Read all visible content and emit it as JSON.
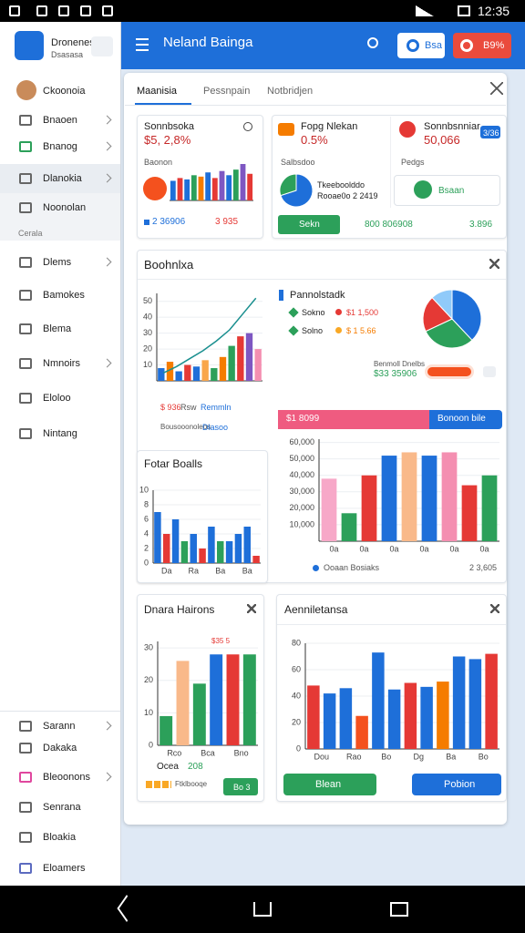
{
  "status_bar": {
    "time": "12:35"
  },
  "sidebar": {
    "app_name": "Dronenes",
    "app_sub": "Dsasasa",
    "user": "Ckoonoia",
    "items": [
      "Bnaoen",
      "Bnanog",
      "Dlanokia",
      "Noonolan"
    ],
    "section": "Cerala",
    "items2": [
      "Dlems",
      "Bamokes",
      "Blema",
      "Nmnoirs",
      "Eloloo",
      "Nintang"
    ],
    "items3": [
      "Sarann",
      "Dakaka",
      "Bleoonons",
      "Senrana",
      "Bloakia",
      "Eloamers"
    ]
  },
  "header": {
    "title": "Neland Bainga",
    "button1": "Bsa",
    "button2": "B9%"
  },
  "tabs": [
    "Maanisia",
    "Pessnpain",
    "Notbridjen"
  ],
  "summary": [
    {
      "title": "Sonnbsoka",
      "value": "$5, 2,8%",
      "label": "Baonon",
      "chart": {
        "values": [
          14,
          16,
          15,
          18,
          17,
          20,
          16,
          21,
          18,
          22,
          26,
          19
        ],
        "colors": [
          "#1e6fd9",
          "#e53935",
          "#1e6fd9",
          "#2ca05a",
          "#f57c00",
          "#1e6fd9",
          "#e53935",
          "#7e57c2",
          "#1e6fd9",
          "#2ca05a",
          "#7e57c2",
          "#e53935"
        ]
      },
      "foot1": "2 36906",
      "foot2": "3 935"
    },
    {
      "title": "Fopg Nlekan",
      "value": "0.5%",
      "label": "Salbsdoo",
      "pie": {
        "values": [
          70,
          30
        ],
        "colors": [
          "#1e6fd9",
          "#2ca05a"
        ]
      },
      "pie_label1": "Tkeeboolddo",
      "pie_label2": "Rooae0o 2 2419",
      "button": "Sekn",
      "foot1": "800 806908",
      "foot2": "3.896"
    },
    {
      "title": "Sonnbsnniar",
      "value": "50,066",
      "badge": "3/36",
      "label": "Pedgs",
      "item": "Bsaan"
    }
  ],
  "main": {
    "title": "Boohnlxa",
    "left_chart": {
      "ylim": [
        0,
        55
      ],
      "yticks": [
        10,
        20,
        30,
        40,
        50
      ],
      "bars": [
        {
          "value": 8,
          "color": "#1e6fd9"
        },
        {
          "value": 12,
          "color": "#f57c00"
        },
        {
          "value": 6,
          "color": "#1e6fd9"
        },
        {
          "value": 10,
          "color": "#e53935"
        },
        {
          "value": 9,
          "color": "#1e6fd9"
        },
        {
          "value": 13,
          "color": "#f9a64a"
        },
        {
          "value": 8,
          "color": "#2ca05a"
        },
        {
          "value": 15,
          "color": "#f57c00"
        },
        {
          "value": 22,
          "color": "#2ca05a"
        },
        {
          "value": 28,
          "color": "#e53935"
        },
        {
          "value": 30,
          "color": "#7e57c2"
        },
        {
          "value": 20,
          "color": "#f48fb1"
        }
      ],
      "line": {
        "color": "#1a8f8f",
        "values": [
          5,
          9,
          14,
          19,
          25,
          32,
          42,
          52
        ]
      }
    },
    "left_legend": [
      "$ 936",
      "Rsw",
      "Remmln",
      "Bousooonoleos",
      "Dlasoo"
    ],
    "legend_title": "Pannolstadk",
    "legend": [
      {
        "text": "Sokno",
        "value": "$1 1,500"
      },
      {
        "text": "Solno",
        "value": "$ 1 5.66"
      }
    ],
    "pie": {
      "values": [
        38,
        30,
        20,
        12
      ],
      "colors": [
        "#1e6fd9",
        "#2ca05a",
        "#e53935",
        "#90caf9"
      ]
    },
    "progress_label": "Benmoll Dnelbs",
    "progress_value": "$33 35906",
    "band_left": "$1 8099",
    "band_right": "Bonoon bile",
    "right_chart": {
      "ylim": [
        0,
        62000
      ],
      "yticks": [
        {
          "value": 10000,
          "label": "10,000"
        },
        {
          "value": 20000,
          "label": "20,000"
        },
        {
          "value": 30000,
          "label": "30,000"
        },
        {
          "value": 40000,
          "label": "40,000"
        },
        {
          "value": 50000,
          "label": "50,000"
        },
        {
          "value": 60000,
          "label": "60,000"
        }
      ],
      "bars": [
        {
          "value": 38000,
          "color": "#f7a8c8"
        },
        {
          "value": 17000,
          "color": "#2ca05a"
        },
        {
          "value": 40000,
          "color": "#e53935"
        },
        {
          "value": 52000,
          "color": "#1e6fd9"
        },
        {
          "value": 54000,
          "color": "#f9b98a"
        },
        {
          "value": 52000,
          "color": "#1e6fd9"
        },
        {
          "value": 54000,
          "color": "#f48fb1"
        },
        {
          "value": 34000,
          "color": "#e53935"
        },
        {
          "value": 40000,
          "color": "#2ca05a"
        }
      ],
      "x_labels": [
        "0a",
        "0a",
        "0a",
        "0a",
        "0a",
        "0a"
      ]
    },
    "right_legend": "Ooaan Bosiaks",
    "right_total": "2 3,605",
    "sub_title": "Fotar Boalls",
    "sub_chart": {
      "ylim": [
        0,
        10
      ],
      "yticks": [
        0,
        2,
        4,
        6,
        8,
        10
      ],
      "bars": [
        {
          "value": 7,
          "color": "#1e6fd9"
        },
        {
          "value": 4,
          "color": "#e53935"
        },
        {
          "value": 6,
          "color": "#1e6fd9"
        },
        {
          "value": 3,
          "color": "#2ca05a"
        },
        {
          "value": 4,
          "color": "#1e6fd9"
        },
        {
          "value": 2,
          "color": "#e53935"
        },
        {
          "value": 5,
          "color": "#1e6fd9"
        },
        {
          "value": 3,
          "color": "#2ca05a"
        },
        {
          "value": 3,
          "color": "#1e6fd9"
        },
        {
          "value": 4,
          "color": "#1e6fd9"
        },
        {
          "value": 5,
          "color": "#1e6fd9"
        },
        {
          "value": 1,
          "color": "#e53935"
        }
      ],
      "x_labels": [
        "Da",
        "Ra",
        "Ba",
        "Ba"
      ]
    }
  },
  "bottom": [
    {
      "title": "Dnara Hairons",
      "value_label": "$35 5",
      "chart": {
        "ylim": [
          0,
          32
        ],
        "yticks": [
          0,
          10,
          20,
          30
        ],
        "bars": [
          {
            "value": 9,
            "color": "#2ca05a"
          },
          {
            "value": 26,
            "color": "#f9b98a"
          },
          {
            "value": 19,
            "color": "#2ca05a"
          },
          {
            "value": 28,
            "color": "#1e6fd9"
          },
          {
            "value": 28,
            "color": "#e53935"
          },
          {
            "value": 28,
            "color": "#2ca05a"
          }
        ],
        "x_labels": [
          "Rco",
          "Bca",
          "Bno"
        ]
      },
      "legend1": "Ocea",
      "legend2": "208",
      "legend3": "Ftklbooqe",
      "button": "Bo 3"
    },
    {
      "title": "Aenniletansa",
      "chart": {
        "ylim": [
          0,
          80
        ],
        "yticks": [
          0,
          20,
          40,
          60,
          80
        ],
        "bars": [
          {
            "value": 48,
            "color": "#e53935"
          },
          {
            "value": 42,
            "color": "#1e6fd9"
          },
          {
            "value": 46,
            "color": "#1e6fd9"
          },
          {
            "value": 25,
            "color": "#f4511e"
          },
          {
            "value": 73,
            "color": "#1e6fd9"
          },
          {
            "value": 45,
            "color": "#1e6fd9"
          },
          {
            "value": 50,
            "color": "#e53935"
          },
          {
            "value": 47,
            "color": "#1e6fd9"
          },
          {
            "value": 51,
            "color": "#f57c00"
          },
          {
            "value": 70,
            "color": "#1e6fd9"
          },
          {
            "value": 68,
            "color": "#1e6fd9"
          },
          {
            "value": 72,
            "color": "#e53935"
          }
        ],
        "x_labels": [
          "Dou",
          "Rao",
          "Bo",
          "Dg",
          "Ba",
          "Bo"
        ]
      },
      "button1": "Blean",
      "button2": "Pobion"
    }
  ]
}
